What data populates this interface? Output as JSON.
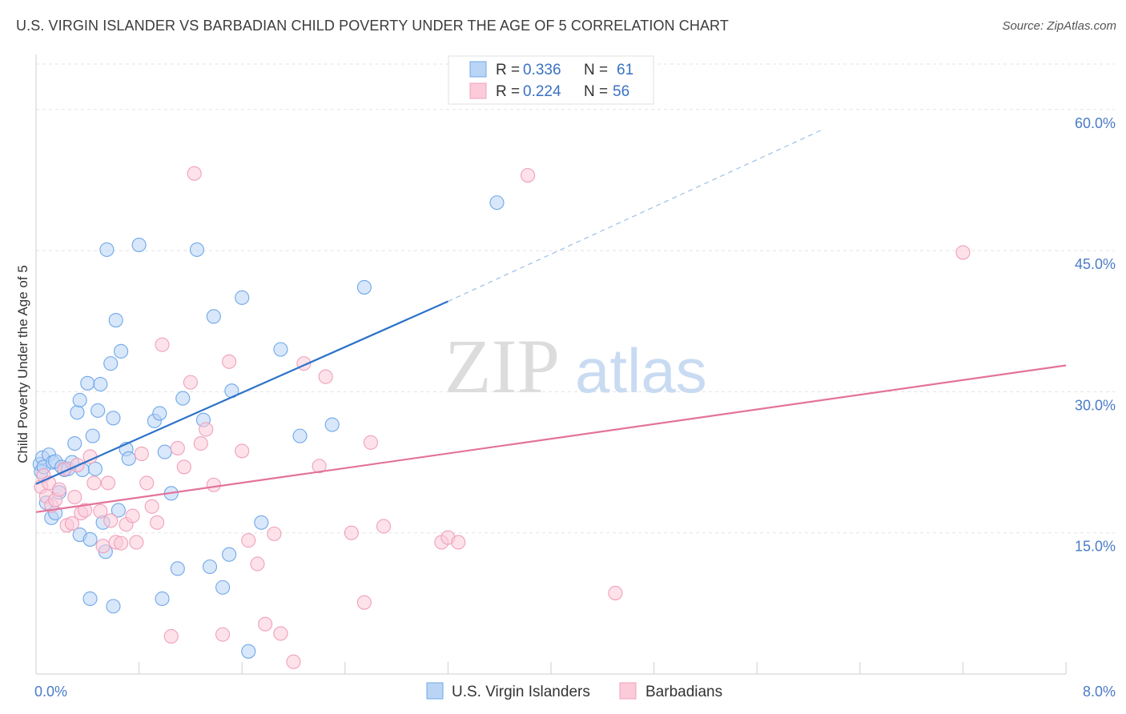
{
  "header": {
    "title": "U.S. VIRGIN ISLANDER VS BARBADIAN CHILD POVERTY UNDER THE AGE OF 5 CORRELATION CHART",
    "source": "Source: ZipAtlas.com"
  },
  "watermark": {
    "zip": "ZIP",
    "atlas": "atlas"
  },
  "legend_top": {
    "r_label": "R =",
    "n_label": "N =",
    "rows": [
      {
        "r": "0.336",
        "n": "61",
        "color": "#6fa8e8",
        "fill": "#b9d4f5"
      },
      {
        "r": "0.224",
        "n": "56",
        "color": "#f0a0bb",
        "fill": "#fbcbd9"
      }
    ]
  },
  "chart_data": {
    "type": "scatter",
    "title": "U.S. VIRGIN ISLANDER VS BARBADIAN CHILD POVERTY UNDER THE AGE OF 5 CORRELATION CHART",
    "xlabel": "",
    "ylabel": "Child Poverty Under the Age of 5",
    "xlim": [
      0,
      8
    ],
    "ylim": [
      0,
      65
    ],
    "x_tick_labels": [
      "0.0%",
      "8.0%"
    ],
    "y_ticks": [
      15,
      30,
      45,
      60
    ],
    "y_tick_labels": [
      "15.0%",
      "30.0%",
      "45.0%",
      "60.0%"
    ],
    "grid": true,
    "legend": "bottom-center",
    "series": [
      {
        "name": "U.S. Virgin Islanders",
        "color": "#6fa8e8",
        "fill": "#b9d4f5",
        "trend": {
          "x": [
            0,
            3.2
          ],
          "y": [
            20.2,
            39.6
          ],
          "color": "#2c72c9",
          "dashed_to": [
            6.1,
            57.8
          ]
        },
        "points": [
          [
            0.03,
            22.3
          ],
          [
            0.04,
            21.5
          ],
          [
            0.05,
            23.0
          ],
          [
            0.06,
            22.0
          ],
          [
            0.08,
            18.2
          ],
          [
            0.1,
            23.3
          ],
          [
            0.12,
            16.6
          ],
          [
            0.13,
            22.5
          ],
          [
            0.15,
            17.1
          ],
          [
            0.15,
            22.6
          ],
          [
            0.18,
            19.3
          ],
          [
            0.2,
            22.0
          ],
          [
            0.22,
            21.7
          ],
          [
            0.25,
            21.8
          ],
          [
            0.28,
            22.5
          ],
          [
            0.3,
            24.5
          ],
          [
            0.32,
            27.8
          ],
          [
            0.34,
            14.8
          ],
          [
            0.34,
            29.1
          ],
          [
            0.36,
            21.7
          ],
          [
            0.4,
            30.9
          ],
          [
            0.42,
            14.3
          ],
          [
            0.44,
            25.3
          ],
          [
            0.46,
            21.8
          ],
          [
            0.48,
            28.0
          ],
          [
            0.52,
            16.1
          ],
          [
            0.54,
            13.0
          ],
          [
            0.55,
            45.1
          ],
          [
            0.58,
            33.0
          ],
          [
            0.6,
            27.2
          ],
          [
            0.62,
            37.6
          ],
          [
            0.64,
            17.4
          ],
          [
            0.66,
            34.3
          ],
          [
            0.7,
            23.9
          ],
          [
            0.72,
            22.9
          ],
          [
            0.8,
            45.6
          ],
          [
            0.92,
            26.9
          ],
          [
            0.96,
            27.7
          ],
          [
            1.0,
            23.6
          ],
          [
            1.05,
            19.2
          ],
          [
            1.1,
            11.2
          ],
          [
            1.14,
            29.3
          ],
          [
            1.25,
            45.1
          ],
          [
            1.3,
            27.0
          ],
          [
            1.35,
            11.4
          ],
          [
            1.38,
            38.0
          ],
          [
            1.45,
            9.2
          ],
          [
            1.5,
            12.7
          ],
          [
            1.52,
            30.1
          ],
          [
            1.6,
            40.0
          ],
          [
            1.65,
            2.4
          ],
          [
            1.75,
            16.1
          ],
          [
            1.9,
            34.5
          ],
          [
            2.05,
            25.3
          ],
          [
            2.3,
            26.5
          ],
          [
            0.42,
            8.0
          ],
          [
            0.6,
            7.2
          ],
          [
            0.5,
            30.8
          ],
          [
            2.55,
            41.1
          ],
          [
            3.58,
            50.1
          ],
          [
            0.98,
            8.0
          ]
        ]
      },
      {
        "name": "Barbadians",
        "color": "#f0a0bb",
        "fill": "#fbcbd9",
        "trend": {
          "x": [
            0,
            8
          ],
          "y": [
            17.2,
            32.8
          ],
          "color": "#e2739a"
        },
        "points": [
          [
            0.04,
            19.9
          ],
          [
            0.06,
            21.1
          ],
          [
            0.08,
            18.9
          ],
          [
            0.1,
            20.3
          ],
          [
            0.12,
            17.9
          ],
          [
            0.15,
            18.5
          ],
          [
            0.18,
            19.6
          ],
          [
            0.22,
            21.8
          ],
          [
            0.24,
            15.8
          ],
          [
            0.28,
            16.0
          ],
          [
            0.3,
            18.8
          ],
          [
            0.32,
            22.2
          ],
          [
            0.35,
            17.1
          ],
          [
            0.38,
            17.4
          ],
          [
            0.42,
            23.1
          ],
          [
            0.45,
            20.3
          ],
          [
            0.5,
            17.3
          ],
          [
            0.52,
            13.6
          ],
          [
            0.56,
            20.3
          ],
          [
            0.58,
            16.3
          ],
          [
            0.62,
            14.0
          ],
          [
            0.66,
            13.9
          ],
          [
            0.7,
            15.9
          ],
          [
            0.75,
            16.8
          ],
          [
            0.78,
            14.0
          ],
          [
            0.82,
            23.4
          ],
          [
            0.86,
            20.3
          ],
          [
            0.9,
            17.8
          ],
          [
            0.94,
            16.1
          ],
          [
            0.98,
            35.0
          ],
          [
            1.05,
            4.0
          ],
          [
            1.1,
            24.0
          ],
          [
            1.15,
            22.0
          ],
          [
            1.2,
            31.0
          ],
          [
            1.23,
            53.2
          ],
          [
            1.28,
            24.5
          ],
          [
            1.32,
            26.0
          ],
          [
            1.38,
            20.1
          ],
          [
            1.45,
            4.2
          ],
          [
            1.5,
            33.2
          ],
          [
            1.6,
            23.7
          ],
          [
            1.65,
            14.2
          ],
          [
            1.72,
            11.7
          ],
          [
            1.78,
            5.3
          ],
          [
            1.85,
            14.9
          ],
          [
            1.9,
            4.3
          ],
          [
            2.0,
            1.3
          ],
          [
            2.08,
            33.0
          ],
          [
            2.2,
            22.1
          ],
          [
            2.25,
            31.6
          ],
          [
            2.45,
            15.0
          ],
          [
            2.55,
            7.6
          ],
          [
            2.7,
            15.7
          ],
          [
            3.15,
            14.0
          ],
          [
            3.2,
            14.5
          ],
          [
            3.28,
            14.0
          ]
        ],
        "extra_points": [
          [
            3.82,
            53.0
          ],
          [
            4.5,
            8.6
          ],
          [
            7.2,
            44.8
          ],
          [
            2.6,
            24.6
          ]
        ]
      }
    ]
  }
}
